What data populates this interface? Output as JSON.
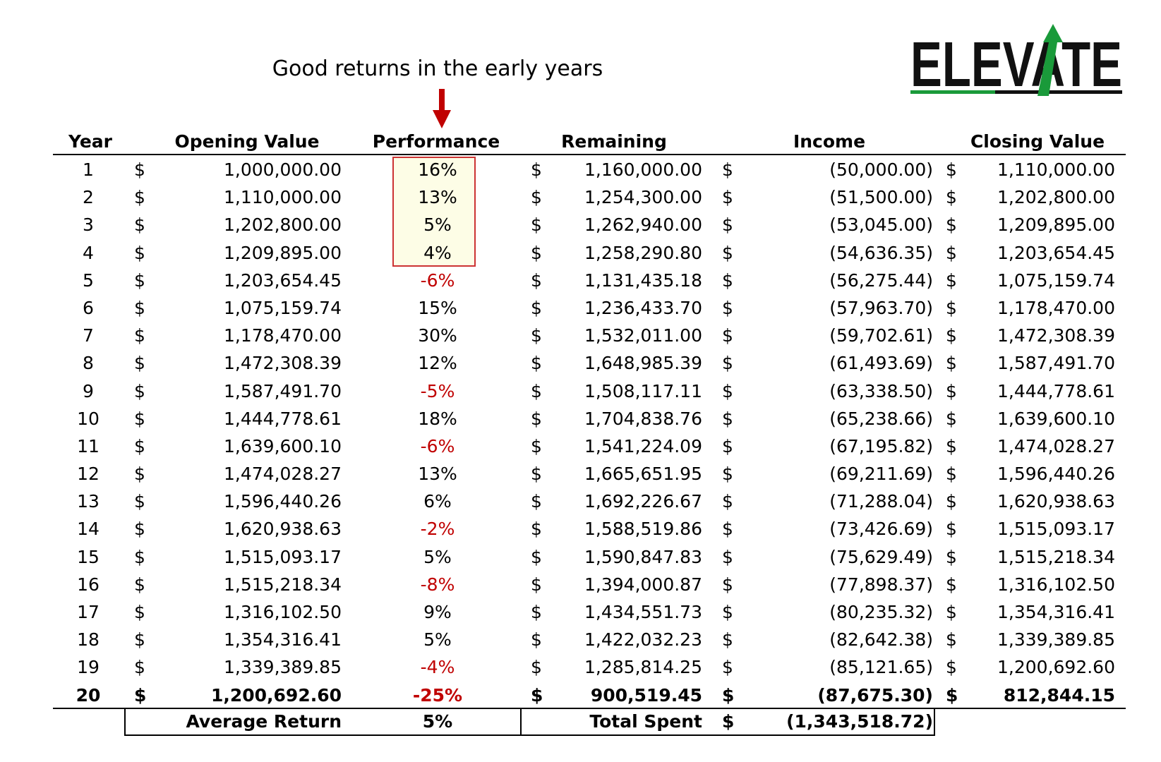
{
  "annotation": {
    "text": "Good returns in the early years"
  },
  "logo": {
    "text": "ELEVATE",
    "accent_color": "#1a9a3a"
  },
  "headers": {
    "year": "Year",
    "opening_value": "Opening Value",
    "performance": "Performance",
    "remaining": "Remaining",
    "income": "Income",
    "closing_value": "Closing Value"
  },
  "currency_symbol": "$",
  "colors": {
    "negative": "#c00000",
    "highlight_border": "#cc3333",
    "highlight_fill": "#fdfde6"
  },
  "rows": [
    {
      "year": "1",
      "opening": "1,000,000.00",
      "performance": "16%",
      "remaining": "1,160,000.00",
      "income": "(50,000.00)",
      "closing": "1,110,000.00"
    },
    {
      "year": "2",
      "opening": "1,110,000.00",
      "performance": "13%",
      "remaining": "1,254,300.00",
      "income": "(51,500.00)",
      "closing": "1,202,800.00"
    },
    {
      "year": "3",
      "opening": "1,202,800.00",
      "performance": "5%",
      "remaining": "1,262,940.00",
      "income": "(53,045.00)",
      "closing": "1,209,895.00"
    },
    {
      "year": "4",
      "opening": "1,209,895.00",
      "performance": "4%",
      "remaining": "1,258,290.80",
      "income": "(54,636.35)",
      "closing": "1,203,654.45"
    },
    {
      "year": "5",
      "opening": "1,203,654.45",
      "performance": "-6%",
      "remaining": "1,131,435.18",
      "income": "(56,275.44)",
      "closing": "1,075,159.74"
    },
    {
      "year": "6",
      "opening": "1,075,159.74",
      "performance": "15%",
      "remaining": "1,236,433.70",
      "income": "(57,963.70)",
      "closing": "1,178,470.00"
    },
    {
      "year": "7",
      "opening": "1,178,470.00",
      "performance": "30%",
      "remaining": "1,532,011.00",
      "income": "(59,702.61)",
      "closing": "1,472,308.39"
    },
    {
      "year": "8",
      "opening": "1,472,308.39",
      "performance": "12%",
      "remaining": "1,648,985.39",
      "income": "(61,493.69)",
      "closing": "1,587,491.70"
    },
    {
      "year": "9",
      "opening": "1,587,491.70",
      "performance": "-5%",
      "remaining": "1,508,117.11",
      "income": "(63,338.50)",
      "closing": "1,444,778.61"
    },
    {
      "year": "10",
      "opening": "1,444,778.61",
      "performance": "18%",
      "remaining": "1,704,838.76",
      "income": "(65,238.66)",
      "closing": "1,639,600.10"
    },
    {
      "year": "11",
      "opening": "1,639,600.10",
      "performance": "-6%",
      "remaining": "1,541,224.09",
      "income": "(67,195.82)",
      "closing": "1,474,028.27"
    },
    {
      "year": "12",
      "opening": "1,474,028.27",
      "performance": "13%",
      "remaining": "1,665,651.95",
      "income": "(69,211.69)",
      "closing": "1,596,440.26"
    },
    {
      "year": "13",
      "opening": "1,596,440.26",
      "performance": "6%",
      "remaining": "1,692,226.67",
      "income": "(71,288.04)",
      "closing": "1,620,938.63"
    },
    {
      "year": "14",
      "opening": "1,620,938.63",
      "performance": "-2%",
      "remaining": "1,588,519.86",
      "income": "(73,426.69)",
      "closing": "1,515,093.17"
    },
    {
      "year": "15",
      "opening": "1,515,093.17",
      "performance": "5%",
      "remaining": "1,590,847.83",
      "income": "(75,629.49)",
      "closing": "1,515,218.34"
    },
    {
      "year": "16",
      "opening": "1,515,218.34",
      "performance": "-8%",
      "remaining": "1,394,000.87",
      "income": "(77,898.37)",
      "closing": "1,316,102.50"
    },
    {
      "year": "17",
      "opening": "1,316,102.50",
      "performance": "9%",
      "remaining": "1,434,551.73",
      "income": "(80,235.32)",
      "closing": "1,354,316.41"
    },
    {
      "year": "18",
      "opening": "1,354,316.41",
      "performance": "5%",
      "remaining": "1,422,032.23",
      "income": "(82,642.38)",
      "closing": "1,339,389.85"
    },
    {
      "year": "19",
      "opening": "1,339,389.85",
      "performance": "-4%",
      "remaining": "1,285,814.25",
      "income": "(85,121.65)",
      "closing": "1,200,692.60"
    },
    {
      "year": "20",
      "opening": "1,200,692.60",
      "performance": "-25%",
      "remaining": "900,519.45",
      "income": "(87,675.30)",
      "closing": "812,844.15"
    }
  ],
  "footer": {
    "average_return_label": "Average Return",
    "average_return_value": "5%",
    "total_spent_label": "Total Spent",
    "total_spent_value": "(1,343,518.72)"
  }
}
